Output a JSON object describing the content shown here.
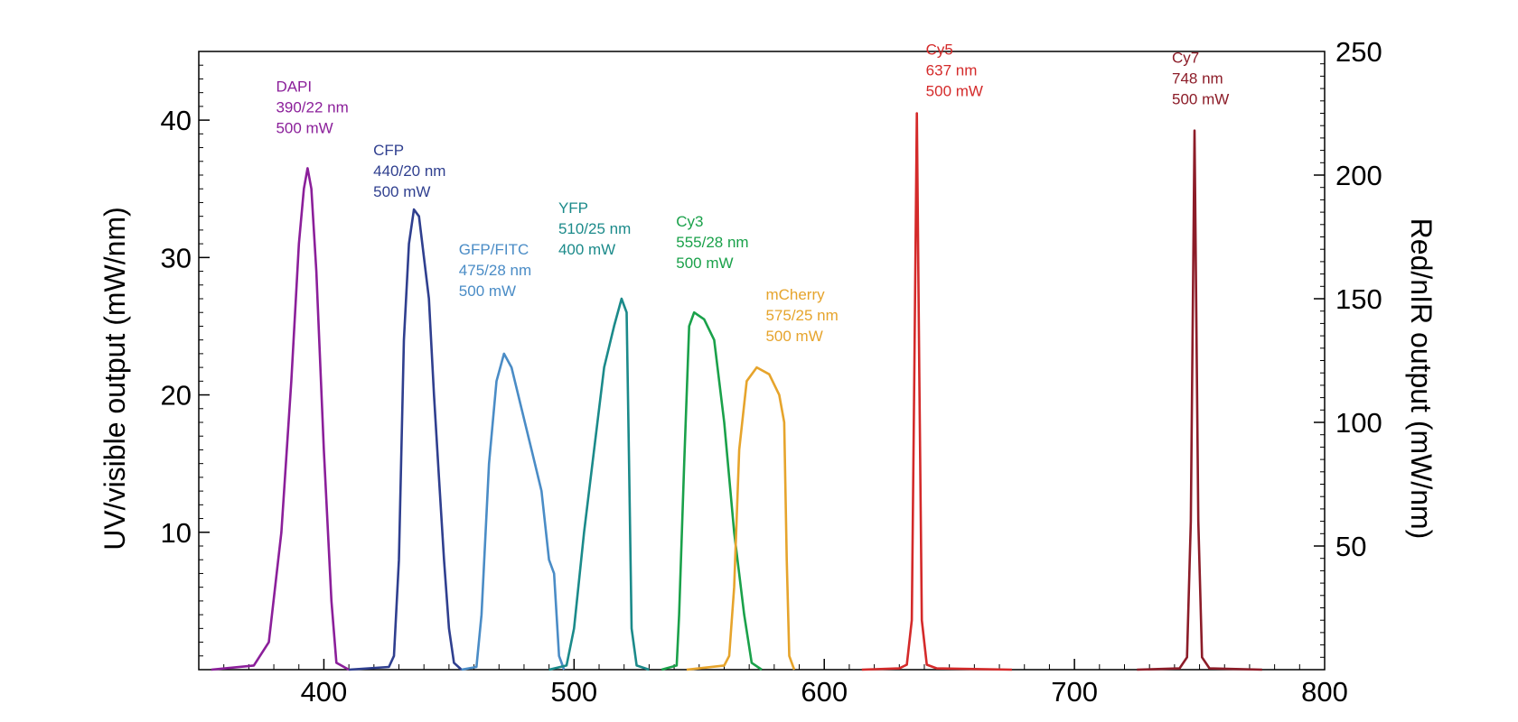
{
  "chart_data": {
    "type": "line",
    "title": "",
    "xlabel": "",
    "ylabel_left": "UV/visible output (mW/nm)",
    "ylabel_right": "Red/nIR output (mW/nm)",
    "xlim": [
      350,
      800
    ],
    "ylim_left": [
      0,
      45
    ],
    "ylim_right": [
      0,
      250
    ],
    "x_ticks": [
      400,
      500,
      600,
      700,
      800
    ],
    "y_ticks_left": [
      10,
      20,
      30,
      40
    ],
    "y_ticks_right": [
      50,
      100,
      150,
      200,
      250
    ],
    "grid": false,
    "series": [
      {
        "name": "DAPI",
        "info": [
          "DAPI",
          "390/22 nm",
          "500 mW"
        ],
        "axis": "left",
        "color": "#8b1f9a",
        "points": [
          [
            355,
            0
          ],
          [
            372,
            0.3
          ],
          [
            378,
            2
          ],
          [
            383,
            10
          ],
          [
            387,
            21
          ],
          [
            390,
            31
          ],
          [
            392,
            35
          ],
          [
            393.5,
            36.5
          ],
          [
            395,
            35
          ],
          [
            397,
            29
          ],
          [
            400,
            16
          ],
          [
            403,
            5
          ],
          [
            405,
            0.5
          ],
          [
            410,
            0
          ]
        ],
        "label_peak": [
          393.5,
          36.5
        ]
      },
      {
        "name": "CFP",
        "info": [
          "CFP",
          "440/20 nm",
          "500 mW"
        ],
        "axis": "left",
        "color": "#2f3f8f",
        "points": [
          [
            410,
            0
          ],
          [
            426,
            0.2
          ],
          [
            428,
            1
          ],
          [
            430,
            8
          ],
          [
            432,
            24
          ],
          [
            434,
            31
          ],
          [
            436,
            33.5
          ],
          [
            438,
            33
          ],
          [
            440,
            30
          ],
          [
            442,
            27
          ],
          [
            444,
            20
          ],
          [
            446,
            14
          ],
          [
            448,
            8
          ],
          [
            450,
            3
          ],
          [
            452,
            0.5
          ],
          [
            455,
            0
          ]
        ],
        "label_peak": [
          436,
          33.5
        ]
      },
      {
        "name": "GFP/FITC",
        "info": [
          "GFP/FITC",
          "475/28 nm",
          "500 mW"
        ],
        "axis": "left",
        "color": "#4a8cc6",
        "points": [
          [
            455,
            0
          ],
          [
            461,
            0.2
          ],
          [
            463,
            4
          ],
          [
            466,
            15
          ],
          [
            469,
            21
          ],
          [
            472,
            23
          ],
          [
            475,
            22
          ],
          [
            479,
            19
          ],
          [
            483,
            16
          ],
          [
            487,
            13
          ],
          [
            490,
            8
          ],
          [
            492,
            7
          ],
          [
            494,
            1
          ],
          [
            496,
            0
          ]
        ],
        "label_peak": [
          472,
          23
        ]
      },
      {
        "name": "YFP",
        "info": [
          "YFP",
          "510/25 nm",
          "400 mW"
        ],
        "axis": "left",
        "color": "#1b8a8a",
        "points": [
          [
            490,
            0
          ],
          [
            497,
            0.3
          ],
          [
            500,
            3
          ],
          [
            504,
            10
          ],
          [
            508,
            16
          ],
          [
            512,
            22
          ],
          [
            516,
            25
          ],
          [
            519,
            27
          ],
          [
            521,
            26
          ],
          [
            522,
            15
          ],
          [
            523,
            3
          ],
          [
            525,
            0.3
          ],
          [
            530,
            0
          ]
        ],
        "label_peak": [
          519,
          27
        ]
      },
      {
        "name": "Cy3",
        "info": [
          "Cy3",
          "555/28 nm",
          "500 mW"
        ],
        "axis": "left",
        "color": "#1aa14a",
        "points": [
          [
            535,
            0
          ],
          [
            541,
            0.3
          ],
          [
            542,
            4
          ],
          [
            544,
            15
          ],
          [
            546,
            25
          ],
          [
            548,
            26
          ],
          [
            552,
            25.5
          ],
          [
            556,
            24
          ],
          [
            560,
            18
          ],
          [
            564,
            10
          ],
          [
            568,
            4
          ],
          [
            571,
            0.5
          ],
          [
            575,
            0
          ]
        ],
        "label_peak": [
          548,
          26
        ]
      },
      {
        "name": "mCherry",
        "info": [
          "mCherry",
          "575/25 nm",
          "500 mW"
        ],
        "axis": "left",
        "color": "#e6a42c",
        "points": [
          [
            545,
            0
          ],
          [
            560,
            0.3
          ],
          [
            562,
            1
          ],
          [
            564,
            6
          ],
          [
            566,
            16
          ],
          [
            569,
            21
          ],
          [
            573,
            22
          ],
          [
            578,
            21.5
          ],
          [
            582,
            20
          ],
          [
            584,
            18
          ],
          [
            585,
            8
          ],
          [
            586,
            1
          ],
          [
            588,
            0
          ]
        ],
        "label_peak": [
          573,
          22
        ]
      },
      {
        "name": "Cy5",
        "info": [
          "Cy5",
          "637 nm",
          "500 mW"
        ],
        "axis": "right",
        "color": "#d42a2a",
        "points": [
          [
            615,
            0
          ],
          [
            630,
            0.5
          ],
          [
            633,
            2
          ],
          [
            635,
            20
          ],
          [
            636,
            120
          ],
          [
            637,
            225
          ],
          [
            638,
            120
          ],
          [
            639,
            20
          ],
          [
            641,
            2
          ],
          [
            645,
            0.5
          ],
          [
            675,
            0
          ]
        ],
        "label_peak": [
          637,
          225
        ]
      },
      {
        "name": "Cy7",
        "info": [
          "Cy7",
          "748 nm",
          "500 mW"
        ],
        "axis": "right",
        "color": "#8c1c28",
        "points": [
          [
            725,
            0
          ],
          [
            742,
            0.5
          ],
          [
            745,
            5
          ],
          [
            746.5,
            60
          ],
          [
            748,
            218
          ],
          [
            749.5,
            60
          ],
          [
            751,
            5
          ],
          [
            754,
            0.5
          ],
          [
            775,
            0
          ]
        ],
        "label_peak": [
          748,
          218
        ]
      }
    ]
  }
}
